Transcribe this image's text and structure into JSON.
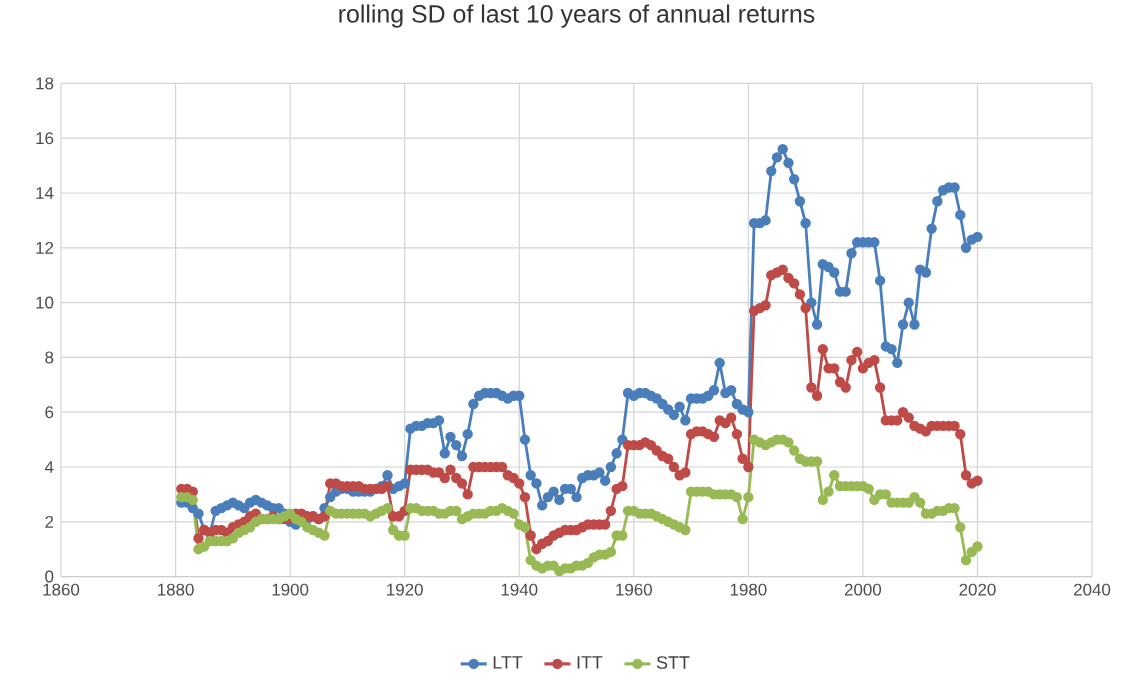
{
  "chart_data": {
    "type": "line",
    "title": "rolling SD of last 10 years of annual returns",
    "x": [
      1881,
      1882,
      1883,
      1884,
      1885,
      1886,
      1887,
      1888,
      1889,
      1890,
      1891,
      1892,
      1893,
      1894,
      1895,
      1896,
      1897,
      1898,
      1899,
      1900,
      1901,
      1902,
      1903,
      1904,
      1905,
      1906,
      1907,
      1908,
      1909,
      1910,
      1911,
      1912,
      1913,
      1914,
      1915,
      1916,
      1917,
      1918,
      1919,
      1920,
      1921,
      1922,
      1923,
      1924,
      1925,
      1926,
      1927,
      1928,
      1929,
      1930,
      1931,
      1932,
      1933,
      1934,
      1935,
      1936,
      1937,
      1938,
      1939,
      1940,
      1941,
      1942,
      1943,
      1944,
      1945,
      1946,
      1947,
      1948,
      1949,
      1950,
      1951,
      1952,
      1953,
      1954,
      1955,
      1956,
      1957,
      1958,
      1959,
      1960,
      1961,
      1962,
      1963,
      1964,
      1965,
      1966,
      1967,
      1968,
      1969,
      1970,
      1971,
      1972,
      1973,
      1974,
      1975,
      1976,
      1977,
      1978,
      1979,
      1980,
      1981,
      1982,
      1983,
      1984,
      1985,
      1986,
      1987,
      1988,
      1989,
      1990,
      1991,
      1992,
      1993,
      1994,
      1995,
      1996,
      1997,
      1998,
      1999,
      2000,
      2001,
      2002,
      2003,
      2004,
      2005,
      2006,
      2007,
      2008,
      2009,
      2010,
      2011,
      2012,
      2013,
      2014,
      2015,
      2016,
      2017,
      2018,
      2019,
      2020
    ],
    "series": [
      {
        "name": "LTT",
        "color": "#4a7ebb",
        "values": [
          2.7,
          2.7,
          2.5,
          2.3,
          1.7,
          1.6,
          2.4,
          2.5,
          2.6,
          2.7,
          2.6,
          2.5,
          2.7,
          2.8,
          2.7,
          2.6,
          2.5,
          2.5,
          2.3,
          2.0,
          1.9,
          2.0,
          2.1,
          2.2,
          2.1,
          2.5,
          2.9,
          3.1,
          3.2,
          3.2,
          3.1,
          3.1,
          3.1,
          3.1,
          3.2,
          3.3,
          3.7,
          3.2,
          3.3,
          3.4,
          5.4,
          5.5,
          5.5,
          5.6,
          5.6,
          5.7,
          4.5,
          5.1,
          4.8,
          4.4,
          5.2,
          6.3,
          6.6,
          6.7,
          6.7,
          6.7,
          6.6,
          6.5,
          6.6,
          6.6,
          5.0,
          3.7,
          3.4,
          2.6,
          2.9,
          3.1,
          2.8,
          3.2,
          3.2,
          2.9,
          3.6,
          3.7,
          3.7,
          3.8,
          3.5,
          4.0,
          4.5,
          5.0,
          6.7,
          6.6,
          6.7,
          6.7,
          6.6,
          6.5,
          6.3,
          6.1,
          5.9,
          6.2,
          5.7,
          6.5,
          6.5,
          6.5,
          6.6,
          6.8,
          7.8,
          6.7,
          6.8,
          6.3,
          6.1,
          6.0,
          12.9,
          12.9,
          13.0,
          14.8,
          15.3,
          15.6,
          15.1,
          14.5,
          13.7,
          12.9,
          10.0,
          9.2,
          11.4,
          11.3,
          11.1,
          10.4,
          10.4,
          11.8,
          12.2,
          12.2,
          12.2,
          12.2,
          10.8,
          8.4,
          8.3,
          7.8,
          9.2,
          10.0,
          9.2,
          11.2,
          11.1,
          12.7,
          13.7,
          14.1,
          14.2,
          14.2,
          13.2,
          12.0,
          12.3,
          12.4
        ]
      },
      {
        "name": "ITT",
        "color": "#be4b48",
        "values": [
          3.2,
          3.2,
          3.1,
          1.4,
          1.7,
          1.6,
          1.7,
          1.7,
          1.6,
          1.8,
          1.9,
          2.0,
          2.2,
          2.3,
          2.1,
          2.1,
          2.2,
          2.1,
          2.1,
          2.1,
          2.3,
          2.3,
          2.2,
          2.2,
          2.1,
          2.2,
          3.4,
          3.4,
          3.3,
          3.3,
          3.3,
          3.3,
          3.2,
          3.2,
          3.2,
          3.2,
          3.3,
          2.2,
          2.2,
          2.4,
          3.9,
          3.9,
          3.9,
          3.9,
          3.8,
          3.8,
          3.6,
          3.9,
          3.6,
          3.4,
          3.0,
          4.0,
          4.0,
          4.0,
          4.0,
          4.0,
          4.0,
          3.7,
          3.6,
          3.4,
          2.9,
          1.5,
          1.0,
          1.2,
          1.3,
          1.5,
          1.6,
          1.7,
          1.7,
          1.7,
          1.8,
          1.9,
          1.9,
          1.9,
          1.9,
          2.4,
          3.2,
          3.3,
          4.8,
          4.8,
          4.8,
          4.9,
          4.8,
          4.6,
          4.4,
          4.3,
          4.0,
          3.7,
          3.8,
          5.2,
          5.3,
          5.3,
          5.2,
          5.1,
          5.7,
          5.6,
          5.8,
          5.2,
          4.3,
          4.0,
          9.7,
          9.8,
          9.9,
          11.0,
          11.1,
          11.2,
          10.9,
          10.7,
          10.3,
          9.8,
          6.9,
          6.6,
          8.3,
          7.6,
          7.6,
          7.1,
          6.9,
          7.9,
          8.2,
          7.6,
          7.8,
          7.9,
          6.9,
          5.7,
          5.7,
          5.7,
          6.0,
          5.8,
          5.5,
          5.4,
          5.3,
          5.5,
          5.5,
          5.5,
          5.5,
          5.5,
          5.2,
          3.7,
          3.4,
          3.5
        ]
      },
      {
        "name": "STT",
        "color": "#98b954",
        "values": [
          2.9,
          2.9,
          2.8,
          1.0,
          1.1,
          1.3,
          1.3,
          1.3,
          1.3,
          1.4,
          1.6,
          1.7,
          1.8,
          2.0,
          2.1,
          2.1,
          2.1,
          2.1,
          2.2,
          2.3,
          2.1,
          2.0,
          1.8,
          1.7,
          1.6,
          1.5,
          2.4,
          2.3,
          2.3,
          2.3,
          2.3,
          2.3,
          2.3,
          2.2,
          2.3,
          2.4,
          2.5,
          1.7,
          1.5,
          1.5,
          2.5,
          2.5,
          2.4,
          2.4,
          2.4,
          2.3,
          2.3,
          2.4,
          2.4,
          2.1,
          2.2,
          2.3,
          2.3,
          2.3,
          2.4,
          2.4,
          2.5,
          2.4,
          2.3,
          1.9,
          1.8,
          0.6,
          0.4,
          0.3,
          0.4,
          0.4,
          0.2,
          0.3,
          0.3,
          0.4,
          0.4,
          0.5,
          0.7,
          0.8,
          0.8,
          0.9,
          1.5,
          1.5,
          2.4,
          2.4,
          2.3,
          2.3,
          2.3,
          2.2,
          2.1,
          2.0,
          1.9,
          1.8,
          1.7,
          3.1,
          3.1,
          3.1,
          3.1,
          3.0,
          3.0,
          3.0,
          3.0,
          2.9,
          2.1,
          2.9,
          5.0,
          4.9,
          4.8,
          4.9,
          5.0,
          5.0,
          4.9,
          4.6,
          4.3,
          4.2,
          4.2,
          4.2,
          2.8,
          3.1,
          3.7,
          3.3,
          3.3,
          3.3,
          3.3,
          3.3,
          3.2,
          2.8,
          3.0,
          3.0,
          2.7,
          2.7,
          2.7,
          2.7,
          2.9,
          2.7,
          2.3,
          2.3,
          2.4,
          2.4,
          2.5,
          2.5,
          1.8,
          0.6,
          0.9,
          1.1
        ]
      }
    ],
    "xlim": [
      1860,
      2040
    ],
    "ylim": [
      0,
      18
    ],
    "xticks": [
      1860,
      1880,
      1900,
      1920,
      1940,
      1960,
      1980,
      2000,
      2020,
      2040
    ],
    "yticks": [
      0,
      2,
      4,
      6,
      8,
      10,
      12,
      14,
      16,
      18
    ],
    "grid": true,
    "legend": "bottom",
    "marker": "circle",
    "line_style": "solid"
  }
}
